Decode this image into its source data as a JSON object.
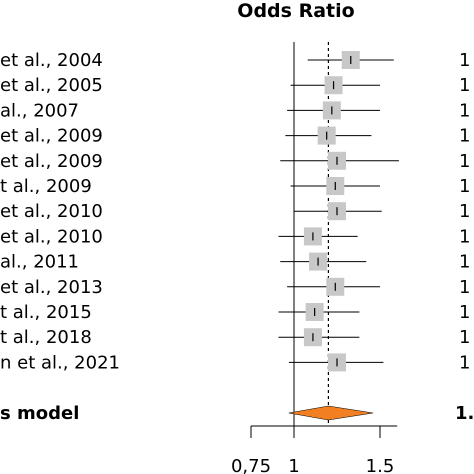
{
  "chart_data": {
    "type": "forest",
    "title": "Odds Ratio",
    "xlim": [
      0.75,
      1.6
    ],
    "xticks": [
      0.75,
      1,
      1.5
    ],
    "xtick_labels": [
      "0,75",
      "1",
      "1.5"
    ],
    "reference_line": 1,
    "pooled_line": 1.2,
    "studies": [
      {
        "label": "et al., 2004",
        "or": 1.33,
        "lo": 1.08,
        "hi": 1.58,
        "right_text": "1"
      },
      {
        "label": "et al., 2005",
        "or": 1.23,
        "lo": 0.98,
        "hi": 1.5,
        "right_text": "1"
      },
      {
        "label": "al., 2007",
        "or": 1.22,
        "lo": 0.96,
        "hi": 1.5,
        "right_text": "1"
      },
      {
        "label": "et al., 2009",
        "or": 1.19,
        "lo": 0.95,
        "hi": 1.45,
        "right_text": "1"
      },
      {
        "label": "et al., 2009",
        "or": 1.25,
        "lo": 0.92,
        "hi": 1.61,
        "right_text": "1"
      },
      {
        "label": "t al., 2009",
        "or": 1.24,
        "lo": 0.98,
        "hi": 1.5,
        "right_text": "1"
      },
      {
        "label": "et al., 2010",
        "or": 1.25,
        "lo": 1.0,
        "hi": 1.51,
        "right_text": "1"
      },
      {
        "label": "et al., 2010",
        "or": 1.11,
        "lo": 0.91,
        "hi": 1.37,
        "right_text": "1"
      },
      {
        "label": "al., 2011",
        "or": 1.14,
        "lo": 0.92,
        "hi": 1.42,
        "right_text": "1"
      },
      {
        "label": "et al., 2013",
        "or": 1.24,
        "lo": 0.96,
        "hi": 1.5,
        "right_text": "1"
      },
      {
        "label": "t al., 2015",
        "or": 1.12,
        "lo": 0.91,
        "hi": 1.38,
        "right_text": "1"
      },
      {
        "label": "t al., 2018",
        "or": 1.11,
        "lo": 0.91,
        "hi": 1.38,
        "right_text": "1"
      },
      {
        "label": "n et al., 2021",
        "or": 1.25,
        "lo": 0.97,
        "hi": 1.52,
        "right_text": "1"
      }
    ],
    "summary": {
      "label": "s model",
      "or": 1.2,
      "lo": 0.97,
      "hi": 1.46,
      "right_text": "1."
    },
    "colors": {
      "box": "#c8c8c8",
      "diamond": "#f28022",
      "line": "#000000"
    }
  }
}
